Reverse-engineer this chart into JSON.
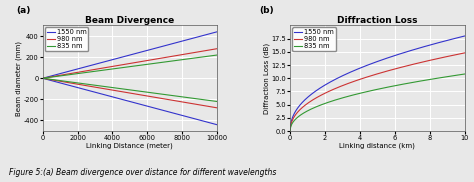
{
  "panel_a": {
    "title": "Beam Divergence",
    "label": "(a)",
    "xlabel": "Linking Distance (meter)",
    "ylabel": "Beam diameter (mm)",
    "xlim": [
      0,
      10000
    ],
    "ylim": [
      -500,
      500
    ],
    "yticks": [
      -400,
      -200,
      0,
      200,
      400
    ],
    "xticks": [
      0,
      2000,
      4000,
      6000,
      8000,
      10000
    ],
    "xtick_labels": [
      "0",
      "2000",
      "4000",
      "6000",
      "8000",
      "10000"
    ],
    "colors": [
      "#3333cc",
      "#cc3333",
      "#339933"
    ],
    "labels": [
      "1550 nm",
      "980 nm",
      "835 nm"
    ],
    "slopes": [
      0.044,
      0.028,
      0.022
    ]
  },
  "panel_b": {
    "title": "Diffraction Loss",
    "label": "(b)",
    "xlabel": "Linking distance (km)",
    "ylabel": "Diffraction Loss (dB)",
    "xlim": [
      0,
      10
    ],
    "ylim": [
      0,
      20
    ],
    "yticks": [
      0.0,
      2.5,
      5.0,
      7.5,
      10.0,
      12.5,
      15.0,
      17.5
    ],
    "xticks": [
      0,
      2,
      4,
      6,
      8,
      10
    ],
    "colors": [
      "#3333cc",
      "#cc3333",
      "#339933"
    ],
    "labels": [
      "1550 nm",
      "980 nm",
      "835 nm"
    ],
    "k_values": [
      18.0,
      14.8,
      10.8
    ],
    "curve_shape": 0.45
  },
  "fig_caption": "Figure 5:(a) Beam divergence over distance for different wavelengths",
  "bg_color": "#e8e8e8",
  "plot_bg": "#e8e8e8",
  "grid_color": "#ffffff",
  "title_fontsize": 6.5,
  "label_fontsize": 5.0,
  "tick_fontsize": 4.8,
  "legend_fontsize": 4.8,
  "caption_fontsize": 5.5
}
